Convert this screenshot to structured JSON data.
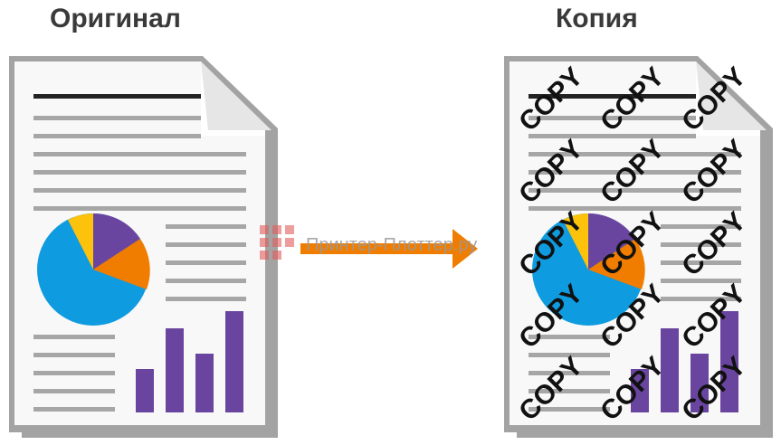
{
  "original": {
    "title": "Оригинал"
  },
  "copy": {
    "title": "Копия",
    "stamp_text": "COPY"
  },
  "watermark": {
    "text": "Принтер-Плоттер.ру"
  },
  "colors": {
    "arrow": "#f07d00",
    "pie_blue": "#0f9be0",
    "pie_yellow": "#fcc20c",
    "pie_purple": "#6a45a0",
    "pie_orange": "#f07d00",
    "bars": "#6a45a0",
    "lines": "#a6a6a6",
    "watermark_logo": "#e35d5d"
  }
}
